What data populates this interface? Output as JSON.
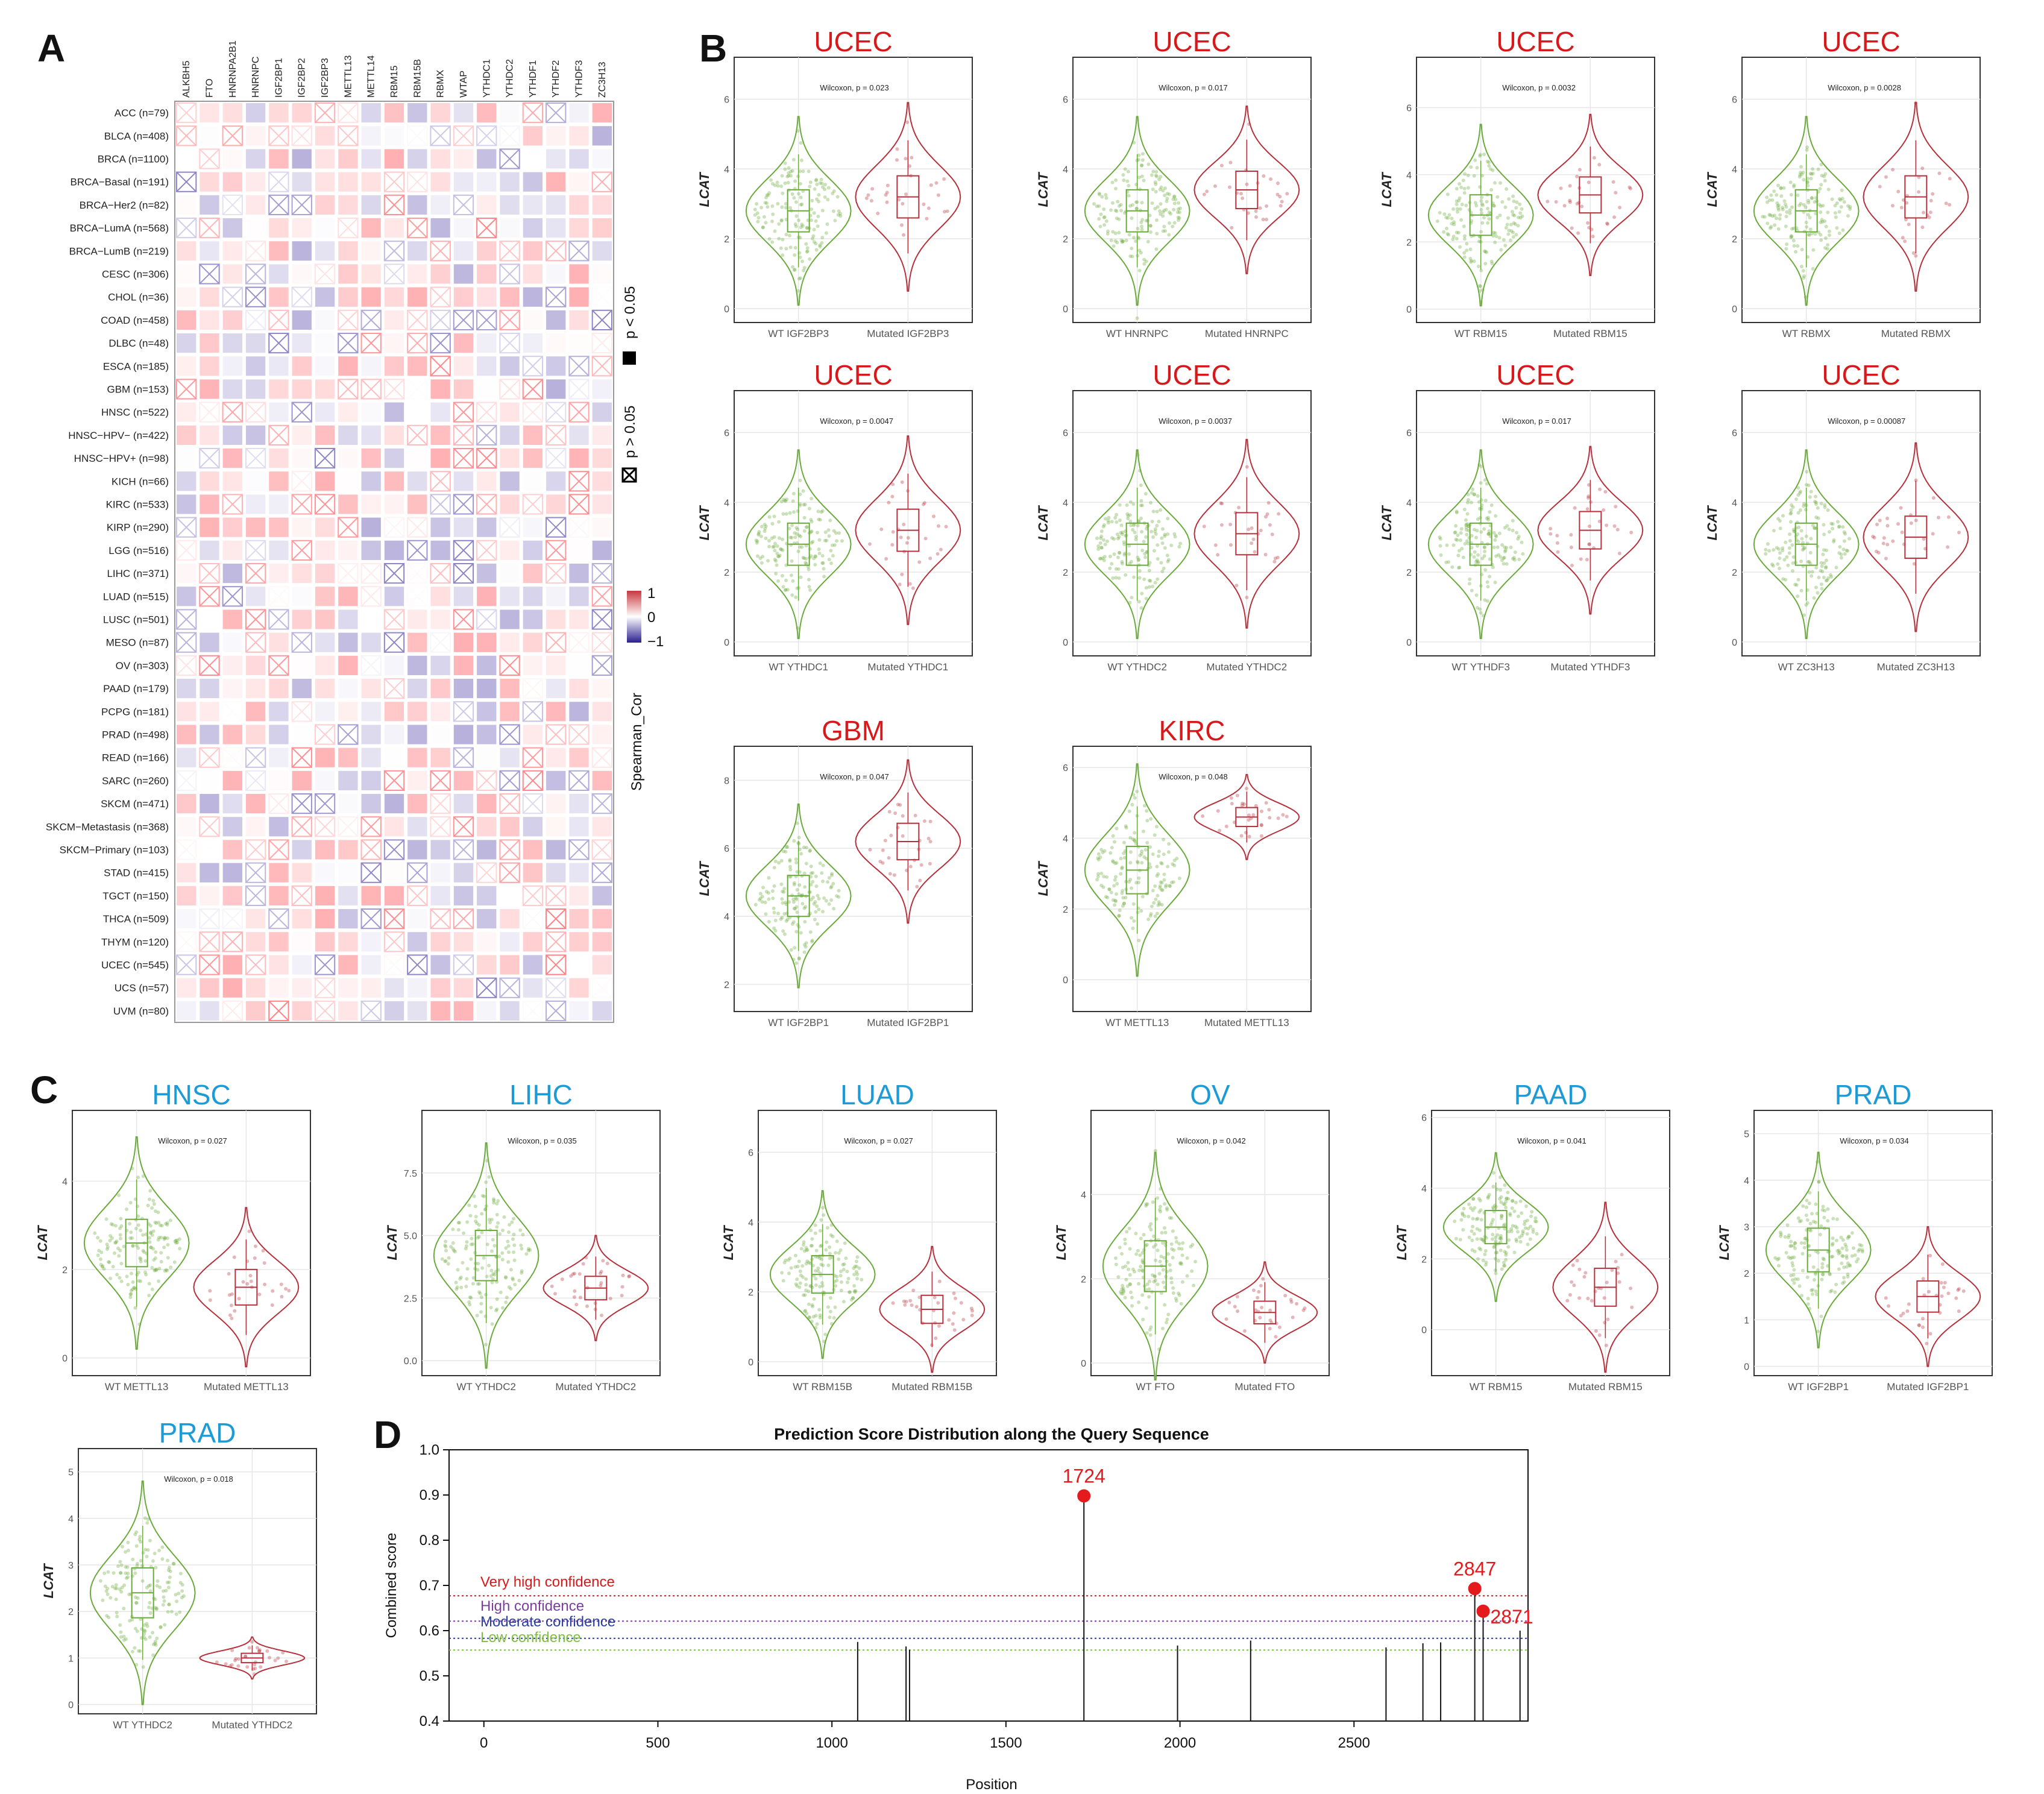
{
  "panel_labels": {
    "a": "A",
    "b": "B",
    "c": "C",
    "d": "D"
  },
  "colors": {
    "wt": "#6aaa3a",
    "mut": "#b5303a",
    "red_title": "#d7191c",
    "blue_title": "#1d9bd7",
    "pos": "#d65f5f",
    "neg": "#4a3fa8"
  },
  "heatmap": {
    "columns": [
      "ALKBH5",
      "FTO",
      "HNRNPA2B1",
      "HNRNPC",
      "IGF2BP1",
      "IGF2BP2",
      "IGF2BP3",
      "METTL13",
      "METTL14",
      "RBM15",
      "RBM15B",
      "RBMX",
      "WTAP",
      "YTHDC1",
      "YTHDC2",
      "YTHDF1",
      "YTHDF2",
      "YTHDF3",
      "ZC3H13"
    ],
    "rows": [
      "ACC (n=79)",
      "BLCA (n=408)",
      "BRCA (n=1100)",
      "BRCA−Basal (n=191)",
      "BRCA−Her2 (n=82)",
      "BRCA−LumA (n=568)",
      "BRCA−LumB (n=219)",
      "CESC (n=306)",
      "CHOL (n=36)",
      "COAD (n=458)",
      "DLBC (n=48)",
      "ESCA (n=185)",
      "GBM (n=153)",
      "HNSC (n=522)",
      "HNSC−HPV− (n=422)",
      "HNSC−HPV+ (n=98)",
      "KICH (n=66)",
      "KIRC (n=533)",
      "KIRP (n=290)",
      "LGG (n=516)",
      "LIHC (n=371)",
      "LUAD (n=515)",
      "LUSC (n=501)",
      "MESO (n=87)",
      "OV (n=303)",
      "PAAD (n=179)",
      "PCPG (n=181)",
      "PRAD (n=498)",
      "READ (n=166)",
      "SARC (n=260)",
      "SKCM (n=471)",
      "SKCM−Metastasis (n=368)",
      "SKCM−Primary (n=103)",
      "STAD (n=415)",
      "TGCT (n=150)",
      "THCA (n=509)",
      "THYM (n=120)",
      "UCEC (n=545)",
      "UCS (n=57)",
      "UVM (n=80)"
    ],
    "legend_sig": "p < 0.05",
    "legend_nonsig": "p > 0.05",
    "legend_title": "Spearman_Cor",
    "legend_max": "1",
    "legend_mid": "0",
    "legend_min": "−1"
  },
  "violins": [
    {
      "title": "UCEC",
      "title_color": "red",
      "wilcoxon": "Wilcoxon, p = 0.023",
      "wt_label": "WT IGF2BP3",
      "mut_label": "Mutated IGF2BP3",
      "ylabel": "LCAT",
      "yticks": [
        "0",
        "2",
        "4",
        "6"
      ],
      "ymin": -0.4,
      "ymax": 7.2
    },
    {
      "title": "UCEC",
      "title_color": "red",
      "wilcoxon": "Wilcoxon, p = 0.017",
      "wt_label": "WT HNRNPC",
      "mut_label": "Mutated HNRNPC",
      "ylabel": "LCAT",
      "yticks": [
        "0",
        "2",
        "4",
        "6"
      ],
      "ymin": -0.4,
      "ymax": 7.2
    },
    {
      "title": "UCEC",
      "title_color": "red",
      "wilcoxon": "Wilcoxon, p = 0.0032",
      "wt_label": "WT RBM15",
      "mut_label": "Mutated RBM15",
      "ylabel": "LCAT",
      "yticks": [
        "0",
        "2",
        "4",
        "6"
      ],
      "ymin": -0.4,
      "ymax": 7.5
    },
    {
      "title": "UCEC",
      "title_color": "red",
      "wilcoxon": "Wilcoxon, p = 0.0028",
      "wt_label": "WT RBMX",
      "mut_label": "Mutated RBMX",
      "ylabel": "LCAT",
      "yticks": [
        "0",
        "2",
        "4",
        "6"
      ],
      "ymin": -0.4,
      "ymax": 7.2
    },
    {
      "title": "UCEC",
      "title_color": "red",
      "wilcoxon": "Wilcoxon, p = 0.0047",
      "wt_label": "WT YTHDC1",
      "mut_label": "Mutated YTHDC1",
      "ylabel": "LCAT",
      "yticks": [
        "0",
        "2",
        "4",
        "6"
      ],
      "ymin": -0.4,
      "ymax": 7.2
    },
    {
      "title": "UCEC",
      "title_color": "red",
      "wilcoxon": "Wilcoxon, p = 0.0037",
      "wt_label": "WT YTHDC2",
      "mut_label": "Mutated YTHDC2",
      "ylabel": "LCAT",
      "yticks": [
        "0",
        "2",
        "4",
        "6"
      ],
      "ymin": -0.4,
      "ymax": 7.2
    },
    {
      "title": "UCEC",
      "title_color": "red",
      "wilcoxon": "Wilcoxon, p = 0.017",
      "wt_label": "WT YTHDF3",
      "mut_label": "Mutated YTHDF3",
      "ylabel": "LCAT",
      "yticks": [
        "0",
        "2",
        "4",
        "6"
      ],
      "ymin": -0.4,
      "ymax": 7.2
    },
    {
      "title": "UCEC",
      "title_color": "red",
      "wilcoxon": "Wilcoxon, p = 0.00087",
      "wt_label": "WT ZC3H13",
      "mut_label": "Mutated ZC3H13",
      "ylabel": "LCAT",
      "yticks": [
        "0",
        "2",
        "4",
        "6"
      ],
      "ymin": -0.4,
      "ymax": 7.2
    },
    {
      "title": "GBM",
      "title_color": "red",
      "wilcoxon": "Wilcoxon, p = 0.047",
      "wt_label": "WT IGF2BP1",
      "mut_label": "Mutated IGF2BP1",
      "ylabel": "LCAT",
      "yticks": [
        "2",
        "4",
        "6",
        "8"
      ],
      "ymin": 1.2,
      "ymax": 9.0
    },
    {
      "title": "KIRC",
      "title_color": "red",
      "wilcoxon": "Wilcoxon, p = 0.048",
      "wt_label": "WT METTL13",
      "mut_label": "Mutated METTL13",
      "ylabel": "LCAT",
      "yticks": [
        "0",
        "2",
        "4",
        "6"
      ],
      "ymin": -0.9,
      "ymax": 6.6
    },
    {
      "title": "HNSC",
      "title_color": "blue",
      "wilcoxon": "Wilcoxon, p = 0.027",
      "wt_label": "WT METTL13",
      "mut_label": "Mutated METTL13",
      "ylabel": "LCAT",
      "yticks": [
        "0",
        "2",
        "4"
      ],
      "ymin": -0.4,
      "ymax": 5.6
    },
    {
      "title": "LIHC",
      "title_color": "blue",
      "wilcoxon": "Wilcoxon, p = 0.035",
      "wt_label": "WT YTHDC2",
      "mut_label": "Mutated YTHDC2",
      "ylabel": "LCAT",
      "yticks": [
        "0.0",
        "2.5",
        "5.0",
        "7.5"
      ],
      "ymin": -0.6,
      "ymax": 10.0
    },
    {
      "title": "LUAD",
      "title_color": "blue",
      "wilcoxon": "Wilcoxon, p = 0.027",
      "wt_label": "WT RBM15B",
      "mut_label": "Mutated RBM15B",
      "ylabel": "LCAT",
      "yticks": [
        "0",
        "2",
        "4",
        "6"
      ],
      "ymin": -0.4,
      "ymax": 7.2
    },
    {
      "title": "OV",
      "title_color": "blue",
      "wilcoxon": "Wilcoxon, p = 0.042",
      "wt_label": "WT FTO",
      "mut_label": "Mutated FTO",
      "ylabel": "LCAT",
      "yticks": [
        "0",
        "2",
        "4"
      ],
      "ymin": -0.3,
      "ymax": 6.0
    },
    {
      "title": "PAAD",
      "title_color": "blue",
      "wilcoxon": "Wilcoxon, p = 0.041",
      "wt_label": "WT RBM15",
      "mut_label": "Mutated RBM15",
      "ylabel": "LCAT",
      "yticks": [
        "0",
        "2",
        "4",
        "6"
      ],
      "ymin": -1.3,
      "ymax": 6.2
    },
    {
      "title": "PRAD",
      "title_color": "blue",
      "wilcoxon": "Wilcoxon, p = 0.034",
      "wt_label": "WT IGF2BP1",
      "mut_label": "Mutated IGF2BP1",
      "ylabel": "LCAT",
      "yticks": [
        "0",
        "1",
        "2",
        "3",
        "4",
        "5"
      ],
      "ymin": -0.2,
      "ymax": 5.5
    },
    {
      "title": "PRAD",
      "title_color": "blue",
      "wilcoxon": "Wilcoxon, p = 0.018",
      "wt_label": "WT YTHDC2",
      "mut_label": "Mutated YTHDC2",
      "ylabel": "LCAT",
      "yticks": [
        "0",
        "1",
        "2",
        "3",
        "4",
        "5"
      ],
      "ymin": -0.2,
      "ymax": 5.5
    }
  ],
  "chart_data": {
    "type": "scatter",
    "title": "Prediction Score Distribution along the Query Sequence",
    "xlabel": "Position",
    "ylabel": "Combined score",
    "xlim": [
      -100,
      3000
    ],
    "ylim": [
      0.4,
      1.0
    ],
    "xticks": [
      "0",
      "500",
      "1000",
      "1500",
      "2000",
      "2500"
    ],
    "yticks": [
      "0.4",
      "0.5",
      "0.6",
      "0.7",
      "0.8",
      "0.9",
      "1.0"
    ],
    "thresholds": [
      {
        "name": "Very high confidence",
        "value": 0.677,
        "color": "#d7191c"
      },
      {
        "name": "High confidence",
        "value": 0.621,
        "color": "#7a3f9d"
      },
      {
        "name": "Moderate confidence",
        "value": 0.583,
        "color": "#2c3e9e"
      },
      {
        "name": "Low confidence",
        "value": 0.557,
        "color": "#7fbf3f"
      }
    ],
    "sites": [
      {
        "x": 1074,
        "y": 0.575
      },
      {
        "x": 1213,
        "y": 0.565
      },
      {
        "x": 1223,
        "y": 0.558
      },
      {
        "x": 1724,
        "y": 0.898,
        "label": "1724"
      },
      {
        "x": 1993,
        "y": 0.567
      },
      {
        "x": 2203,
        "y": 0.578
      },
      {
        "x": 2592,
        "y": 0.563
      },
      {
        "x": 2698,
        "y": 0.572
      },
      {
        "x": 2749,
        "y": 0.574
      },
      {
        "x": 2847,
        "y": 0.693,
        "label": "2847"
      },
      {
        "x": 2871,
        "y": 0.643,
        "label": "2871"
      },
      {
        "x": 2977,
        "y": 0.6
      }
    ]
  }
}
